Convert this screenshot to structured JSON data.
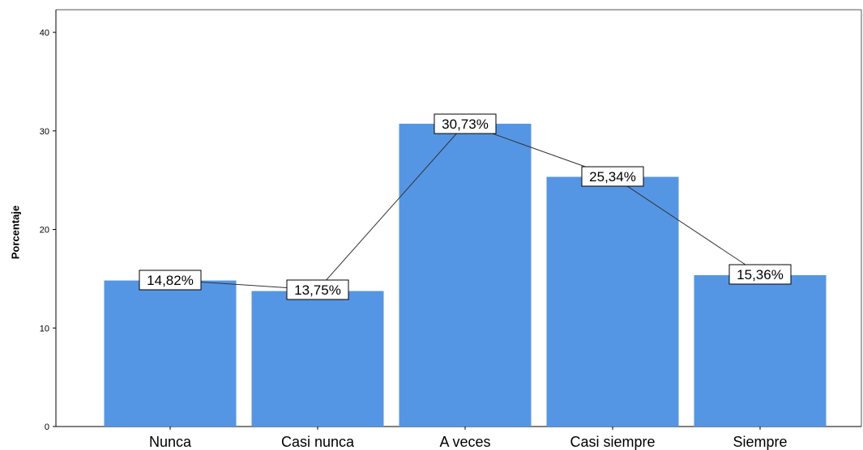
{
  "chart_data": {
    "type": "bar",
    "categories": [
      "Nunca",
      "Casi nunca",
      "A veces",
      "Casi siempre",
      "Siempre"
    ],
    "values": [
      14.82,
      13.75,
      30.73,
      25.34,
      15.36
    ],
    "data_labels": [
      "14,82%",
      "13,75%",
      "30,73%",
      "25,34%",
      "15,36%"
    ],
    "ylabel": "Porcentaje",
    "xlabel": "",
    "ylim": [
      0,
      40
    ],
    "yticks": [
      0,
      10,
      20,
      30,
      40
    ],
    "grid": false,
    "overlay_line": true,
    "colors": {
      "bar": "#5596e4",
      "line": "#333333",
      "axis": "#000000"
    }
  }
}
